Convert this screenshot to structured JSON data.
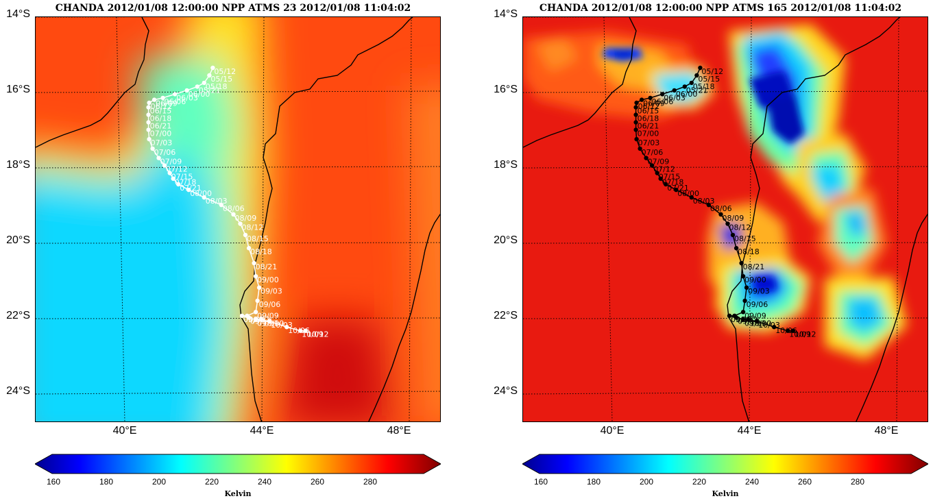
{
  "chart_data": [
    {
      "type": "heatmap",
      "title": "CHANDA 2012/01/08 12:00:00  NPP ATMS 23  2012/01/08 11:04:02",
      "channel": "ATMS 23",
      "track_color": "#ffffff",
      "lat_ticks": [
        "14°S",
        "16°S",
        "18°S",
        "20°S",
        "22°S",
        "24°S"
      ],
      "lon_ticks": [
        "40°E",
        "44°E",
        "48°E"
      ],
      "lat_range": [
        -24.8,
        -14.0
      ],
      "lon_range": [
        37.4,
        49.2
      ],
      "colorbar": {
        "ticks": [
          "160",
          "180",
          "200",
          "220",
          "240",
          "260",
          "280"
        ],
        "range": [
          150,
          300
        ],
        "label": "Kelvin"
      }
    },
    {
      "type": "heatmap",
      "title": "CHANDA 2012/01/08 12:00:00  NPP ATMS 165  2012/01/08 11:04:02",
      "channel": "ATMS 165",
      "track_color": "#000000",
      "lat_ticks": [
        "14°S",
        "16°S",
        "18°S",
        "20°S",
        "22°S",
        "24°S"
      ],
      "lon_ticks": [
        "40°E",
        "44°E",
        "48°E"
      ],
      "lat_range": [
        -24.8,
        -14.0
      ],
      "lon_range": [
        37.4,
        49.2
      ],
      "colorbar": {
        "ticks": [
          "160",
          "180",
          "200",
          "220",
          "240",
          "260",
          "280"
        ],
        "range": [
          150,
          300
        ],
        "label": "Kelvin"
      }
    }
  ],
  "track": [
    {
      "label": "05/12",
      "lon": 42.55,
      "lat": -15.35
    },
    {
      "label": "05/15",
      "lon": 42.45,
      "lat": -15.55
    },
    {
      "label": "05/18",
      "lon": 42.3,
      "lat": -15.75
    },
    {
      "label": "05/21",
      "lon": 42.1,
      "lat": -15.85
    },
    {
      "label": "06/00",
      "lon": 41.8,
      "lat": -15.95
    },
    {
      "label": "06/03",
      "lon": 41.45,
      "lat": -16.05
    },
    {
      "label": "06/06",
      "lon": 41.1,
      "lat": -16.15
    },
    {
      "label": "06/09",
      "lon": 40.85,
      "lat": -16.2
    },
    {
      "label": "06/12",
      "lon": 40.7,
      "lat": -16.28
    },
    {
      "label": "06/15",
      "lon": 40.68,
      "lat": -16.4
    },
    {
      "label": "06/18",
      "lon": 40.68,
      "lat": -16.6
    },
    {
      "label": "06/21",
      "lon": 40.68,
      "lat": -16.8
    },
    {
      "label": "07/00",
      "lon": 40.68,
      "lat": -17.0
    },
    {
      "label": "07/03",
      "lon": 40.7,
      "lat": -17.25
    },
    {
      "label": "07/06",
      "lon": 40.8,
      "lat": -17.5
    },
    {
      "label": "07/09",
      "lon": 40.98,
      "lat": -17.75
    },
    {
      "label": "07/12",
      "lon": 41.15,
      "lat": -17.95
    },
    {
      "label": "07/15",
      "lon": 41.3,
      "lat": -18.15
    },
    {
      "label": "07/18",
      "lon": 41.4,
      "lat": -18.3
    },
    {
      "label": "07/21",
      "lon": 41.55,
      "lat": -18.45
    },
    {
      "label": "08/00",
      "lon": 41.85,
      "lat": -18.6
    },
    {
      "label": "08/03",
      "lon": 42.3,
      "lat": -18.8
    },
    {
      "label": "08/06",
      "lon": 42.8,
      "lat": -19.0
    },
    {
      "label": "08/09",
      "lon": 43.15,
      "lat": -19.25
    },
    {
      "label": "08/12",
      "lon": 43.35,
      "lat": -19.5
    },
    {
      "label": "08/15",
      "lon": 43.5,
      "lat": -19.8
    },
    {
      "label": "08/18",
      "lon": 43.6,
      "lat": -20.15
    },
    {
      "label": "08/21",
      "lon": 43.75,
      "lat": -20.55
    },
    {
      "label": "09/00",
      "lon": 43.8,
      "lat": -20.9
    },
    {
      "label": "09/03",
      "lon": 43.9,
      "lat": -21.2
    },
    {
      "label": "09/06",
      "lon": 43.85,
      "lat": -21.55
    },
    {
      "label": "09/09",
      "lon": 43.8,
      "lat": -21.85
    },
    {
      "label": "09/12",
      "lon": 43.55,
      "lat": -21.95
    },
    {
      "label": "09/15",
      "lon": 43.4,
      "lat": -21.95
    },
    {
      "label": "09/18",
      "lon": 43.6,
      "lat": -22.0
    },
    {
      "label": "09/21",
      "lon": 43.8,
      "lat": -22.05
    },
    {
      "label": "10/00",
      "lon": 43.95,
      "lat": -22.05
    },
    {
      "label": "10/03",
      "lon": 44.2,
      "lat": -22.1
    },
    {
      "label": "10/06",
      "lon": 44.7,
      "lat": -22.25
    },
    {
      "label": "10/09",
      "lon": 45.1,
      "lat": -22.35
    },
    {
      "label": "10/12",
      "lon": 45.25,
      "lat": -22.35
    }
  ]
}
